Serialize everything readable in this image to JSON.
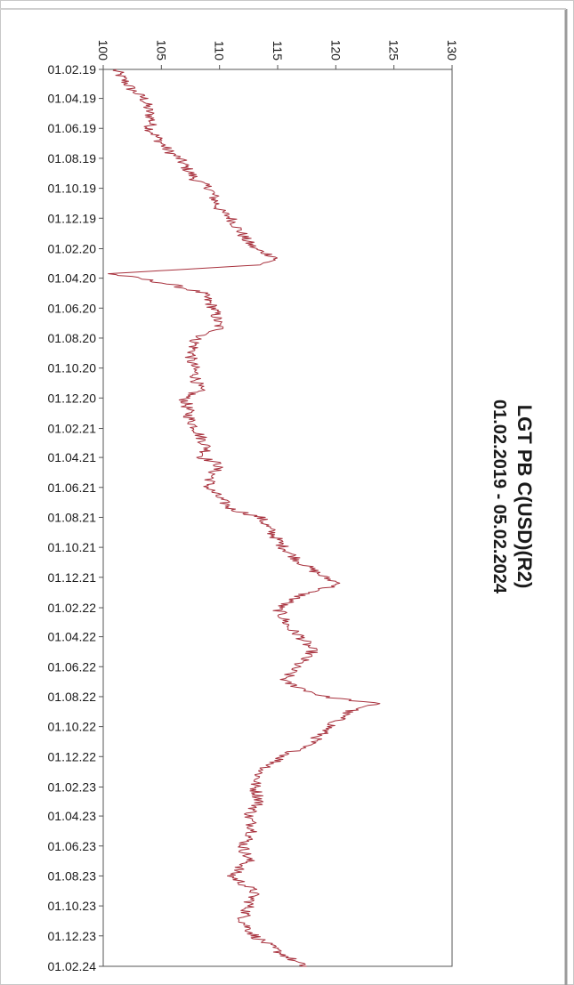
{
  "chart_data": {
    "type": "line",
    "title": "LGT PB C(USD)(R2)",
    "subtitle": "01.02.2019 - 05.02.2024",
    "orientation": "rotated-90-clockwise",
    "xlabel": "",
    "ylabel": "",
    "ylim": [
      100,
      130
    ],
    "y_ticks": [
      "100",
      "105",
      "110",
      "115",
      "120",
      "125",
      "130"
    ],
    "x_tick_labels": [
      "01.02.19",
      "01.04.19",
      "01.06.19",
      "01.08.19",
      "01.10.19",
      "01.12.19",
      "01.02.20",
      "01.04.20",
      "01.06.20",
      "01.08.20",
      "01.10.20",
      "01.12.20",
      "01.02.21",
      "01.04.21",
      "01.06.21",
      "01.08.21",
      "01.10.21",
      "01.12.21",
      "01.02.22",
      "01.04.22",
      "01.06.22",
      "01.08.22",
      "01.10.22",
      "01.12.22",
      "01.02.23",
      "01.04.23",
      "01.06.23",
      "01.08.23",
      "01.10.23",
      "01.12.23",
      "01.02.24"
    ],
    "grid": false,
    "legend": "none",
    "line_color": "#a8323e",
    "series": [
      {
        "x": [
          "01.02.19",
          "15.03.19",
          "01.04.19",
          "15.05.19",
          "01.06.19",
          "15.07.19",
          "01.08.19",
          "15.09.19",
          "01.10.19",
          "15.11.19",
          "01.12.19",
          "15.01.20",
          "01.02.20",
          "20.02.20",
          "05.03.20",
          "23.03.20",
          "01.04.20",
          "15.04.20",
          "01.05.20",
          "01.06.20",
          "15.07.20",
          "01.08.20",
          "15.09.20",
          "01.10.20",
          "15.11.20",
          "01.12.20",
          "15.01.21",
          "01.02.21",
          "15.03.21",
          "01.04.21",
          "15.04.21",
          "01.05.21",
          "01.06.21",
          "15.07.21",
          "01.08.21",
          "01.09.21",
          "01.10.21",
          "01.11.21",
          "01.12.21",
          "15.12.21",
          "01.01.22",
          "01.02.22",
          "15.03.22",
          "01.04.22",
          "01.05.22",
          "01.06.22",
          "01.07.22",
          "01.08.22",
          "15.08.22",
          "01.09.22",
          "01.10.22",
          "01.11.22",
          "01.12.22",
          "01.01.23",
          "01.02.23",
          "01.03.23",
          "01.04.23",
          "01.05.23",
          "01.06.23",
          "01.07.23",
          "01.08.23",
          "01.09.23",
          "01.10.23",
          "01.11.23",
          "01.12.23",
          "01.01.24",
          "05.02.24"
        ],
        "values": [
          101.0,
          102.5,
          103.5,
          104.2,
          104.0,
          105.5,
          106.5,
          108.0,
          109.2,
          110.0,
          111.0,
          112.3,
          113.0,
          115.0,
          113.5,
          100.5,
          103.0,
          106.0,
          108.5,
          109.5,
          110.0,
          108.0,
          107.5,
          107.8,
          108.2,
          107.0,
          107.5,
          108.0,
          109.0,
          108.5,
          110.0,
          109.5,
          109.0,
          111.0,
          113.5,
          114.5,
          115.5,
          117.0,
          119.0,
          120.5,
          117.5,
          115.0,
          116.0,
          117.0,
          118.0,
          116.5,
          115.5,
          119.0,
          123.5,
          121.0,
          119.5,
          118.0,
          115.5,
          113.5,
          113.0,
          113.5,
          112.5,
          113.0,
          112.0,
          112.5,
          111.0,
          113.0,
          112.5,
          112.0,
          113.0,
          115.0,
          117.5
        ]
      }
    ]
  }
}
